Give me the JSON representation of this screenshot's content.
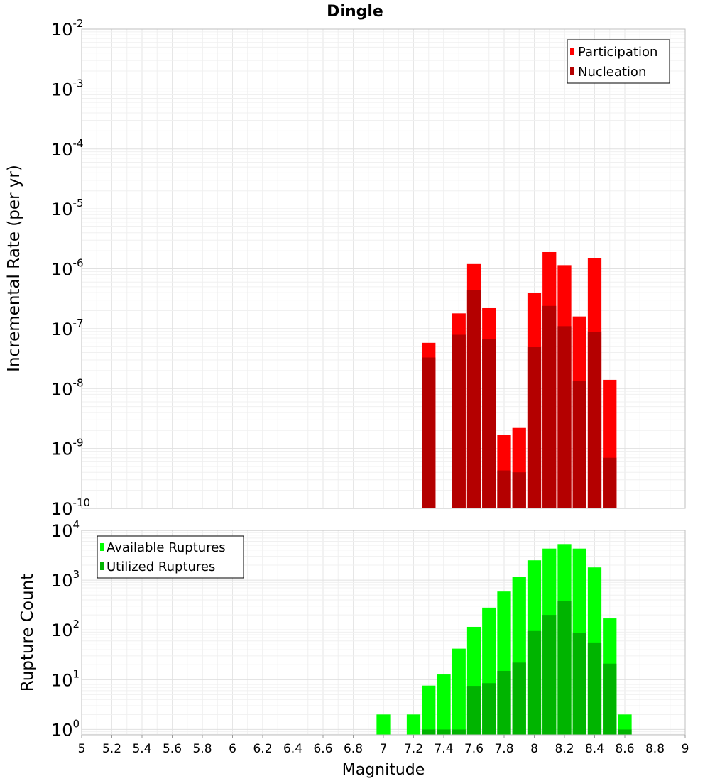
{
  "chart_data": [
    {
      "type": "bar",
      "title": "Dingle",
      "xlabel": "",
      "ylabel": "Incremental Rate (per yr)",
      "yscale": "log",
      "ylim": [
        1e-10,
        0.01
      ],
      "xlim": [
        5,
        9
      ],
      "bar_width": 0.1,
      "x": [
        7.3,
        7.5,
        7.6,
        7.7,
        7.8,
        7.9,
        8.0,
        8.1,
        8.2,
        8.3,
        8.4,
        8.5
      ],
      "legend": {
        "position": "top-right",
        "entries": [
          "Participation",
          "Nucleation"
        ]
      },
      "series": [
        {
          "name": "Participation",
          "color": "#ff0000",
          "values": [
            5.8e-08,
            1.8e-07,
            1.2e-06,
            2.2e-07,
            1.7e-09,
            2.2e-09,
            4e-07,
            1.9e-06,
            1.15e-06,
            1.6e-07,
            1.5e-06,
            1.4e-08
          ]
        },
        {
          "name": "Nucleation",
          "color": "#b40000",
          "values": [
            3.3e-08,
            7.9e-08,
            4.4e-07,
            6.8e-08,
            4.3e-10,
            4e-10,
            4.9e-08,
            2.4e-07,
            1.1e-07,
            1.35e-08,
            8.7e-08,
            7e-10
          ]
        }
      ]
    },
    {
      "type": "bar",
      "title": "",
      "xlabel": "Magnitude",
      "ylabel": "Rupture Count",
      "yscale": "log",
      "ylim": [
        0.78,
        10000
      ],
      "xlim": [
        5,
        9
      ],
      "bar_width": 0.1,
      "x_ticks": [
        "5",
        "5.2",
        "5.4",
        "5.6",
        "5.8",
        "6",
        "6.2",
        "6.4",
        "6.6",
        "6.8",
        "7",
        "7.2",
        "7.4",
        "7.6",
        "7.8",
        "8",
        "8.2",
        "8.4",
        "8.6",
        "8.8",
        "9"
      ],
      "x": [
        7.0,
        7.2,
        7.3,
        7.4,
        7.5,
        7.6,
        7.7,
        7.8,
        7.9,
        8.0,
        8.1,
        8.2,
        8.3,
        8.4,
        8.5,
        8.6
      ],
      "legend": {
        "position": "top-left",
        "entries": [
          "Available Ruptures",
          "Utilized Ruptures"
        ]
      },
      "series": [
        {
          "name": "Available Ruptures",
          "color": "#00ff00",
          "values": [
            2,
            2,
            7.6,
            12.7,
            42,
            115,
            280,
            590,
            1180,
            2500,
            4300,
            5300,
            4300,
            1800,
            170,
            2
          ]
        },
        {
          "name": "Utilized Ruptures",
          "color": "#00b400",
          "values": [
            0,
            0,
            1,
            1,
            1,
            7.5,
            8.5,
            15,
            22,
            95,
            200,
            385,
            88,
            56,
            21,
            1
          ]
        }
      ]
    }
  ]
}
